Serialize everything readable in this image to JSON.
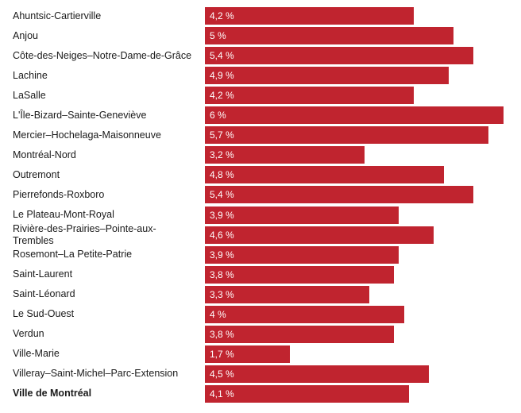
{
  "chart_data": {
    "type": "bar",
    "orientation": "horizontal",
    "title": "",
    "xlabel": "",
    "ylabel": "",
    "xlim": [
      0,
      6
    ],
    "bar_color": "#c0242f",
    "categories": [
      "Ahuntsic-Cartierville",
      "Anjou",
      "Côte-des-Neiges–Notre-Dame-de-Grâce",
      "Lachine",
      "LaSalle",
      "L'Île-Bizard–Sainte-Geneviève",
      "Mercier–Hochelaga-Maisonneuve",
      "Montréal-Nord",
      "Outremont",
      "Pierrefonds-Roxboro",
      "Le Plateau-Mont-Royal",
      "Rivière-des-Prairies–Pointe-aux-Trembles",
      "Rosemont–La Petite-Patrie",
      "Saint-Laurent",
      "Saint-Léonard",
      "Le Sud-Ouest",
      "Verdun",
      "Ville-Marie",
      "Villeray–Saint-Michel–Parc-Extension",
      "Ville de Montréal"
    ],
    "values": [
      4.2,
      5,
      5.4,
      4.9,
      4.2,
      6,
      5.7,
      3.2,
      4.8,
      5.4,
      3.9,
      4.6,
      3.9,
      3.8,
      3.3,
      4,
      3.8,
      1.7,
      4.5,
      4.1
    ],
    "value_labels": [
      "4,2 %",
      "5 %",
      "5,4 %",
      "4,9 %",
      "4,2 %",
      "6 %",
      "5,7 %",
      "3,2 %",
      "4,8 %",
      "5,4 %",
      "3,9 %",
      "4,6 %",
      "3,9 %",
      "3,8 %",
      "3,3 %",
      "4 %",
      "3,8 %",
      "1,7 %",
      "4,5 %",
      "4,1 %"
    ],
    "highlighted_category": "Ville de Montréal"
  }
}
